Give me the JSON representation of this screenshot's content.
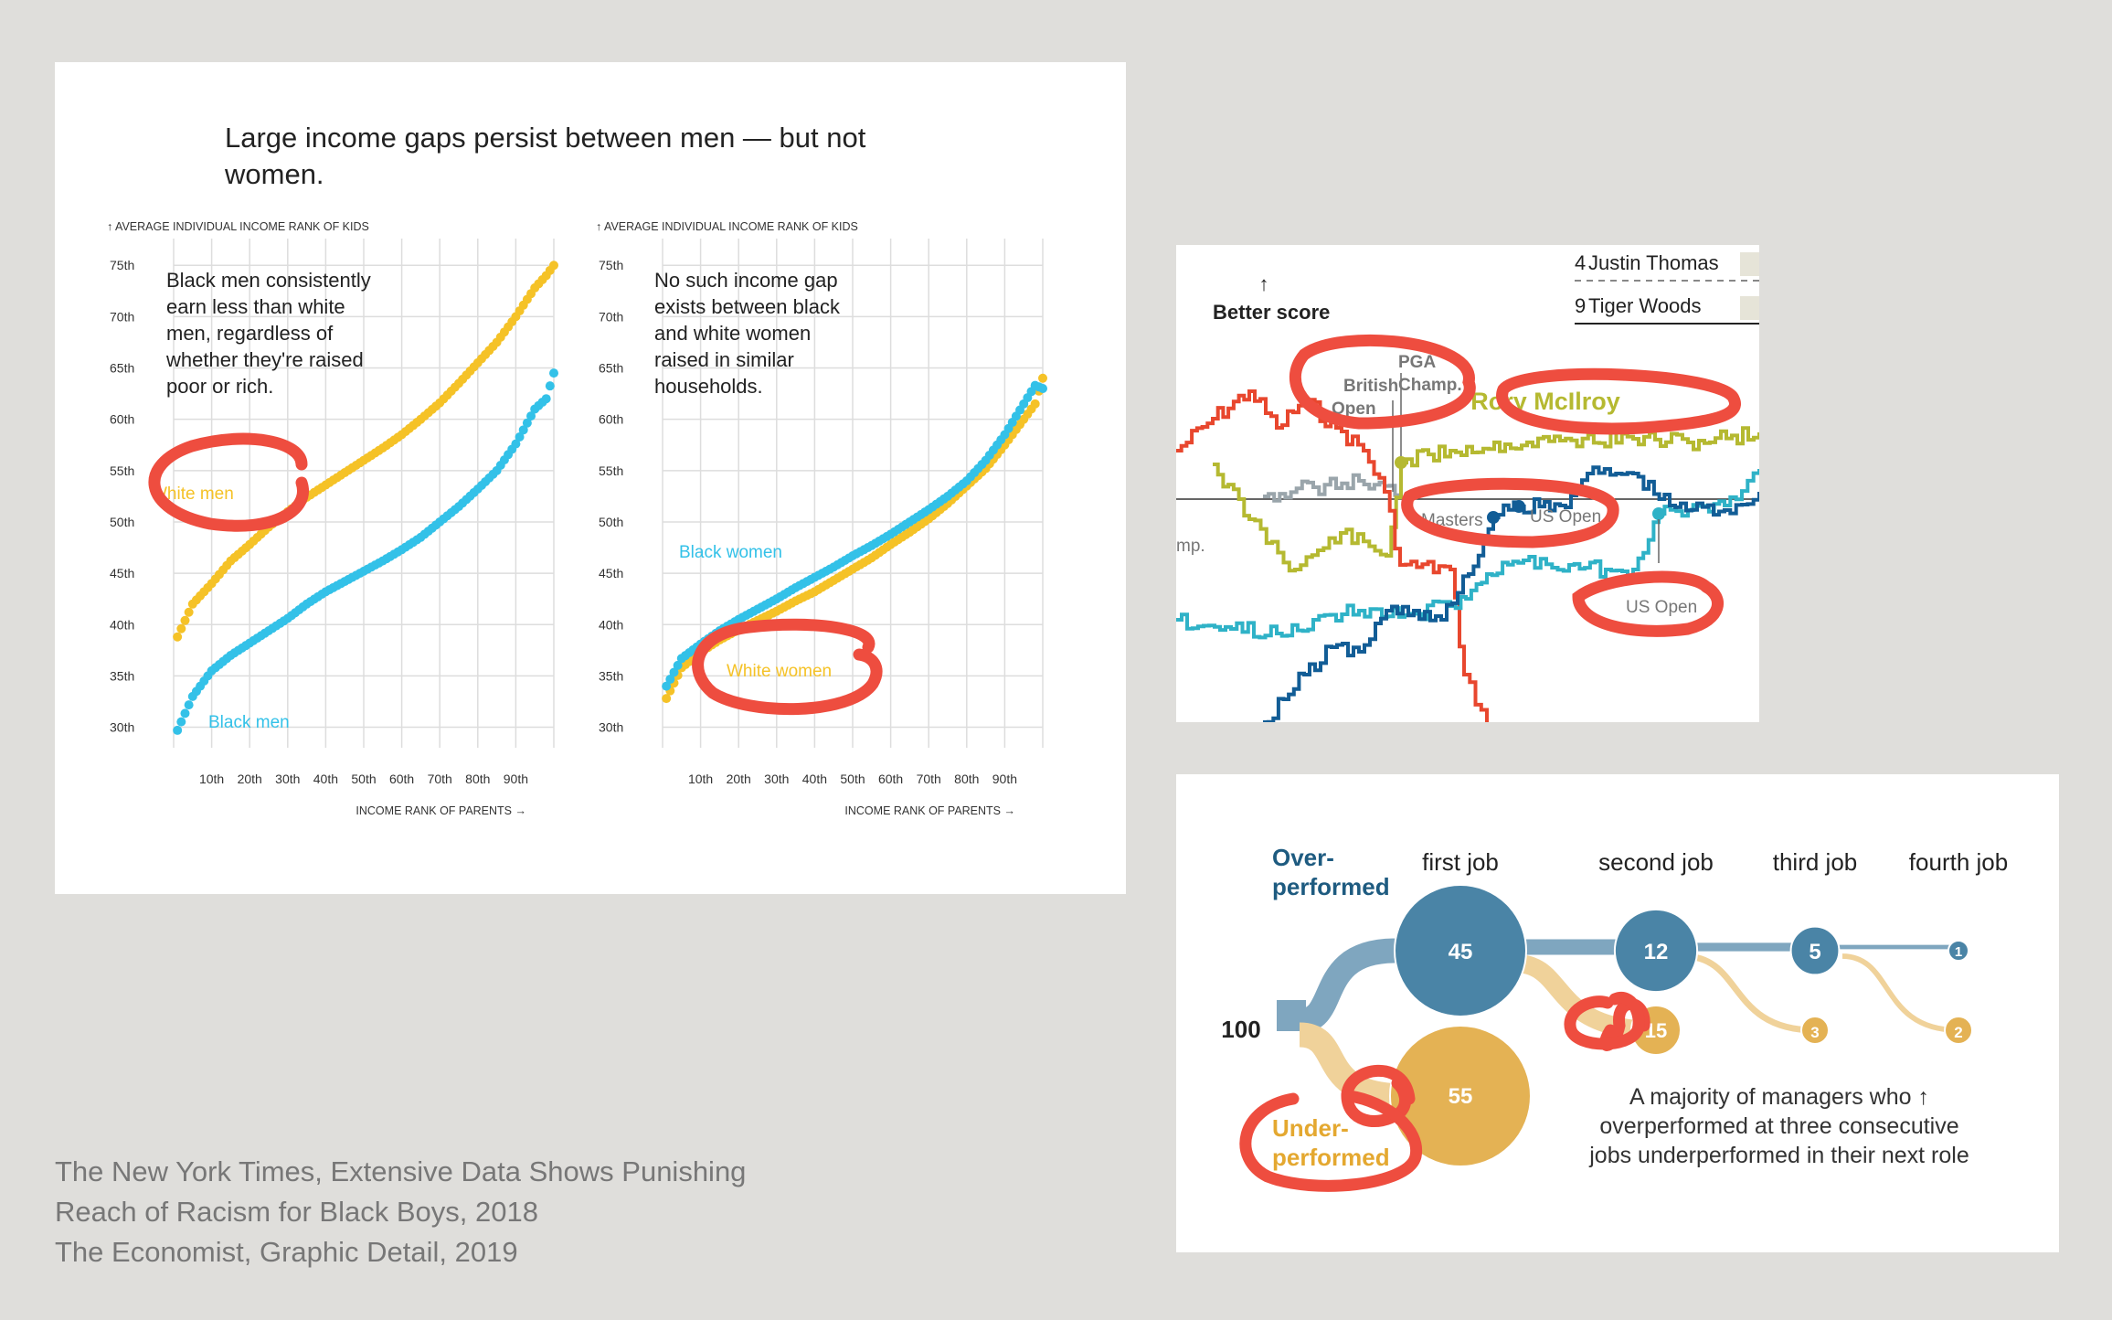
{
  "nyt": {
    "title_line1": "Large income gaps persist between men — but not",
    "title_line2": "women.",
    "colors": {
      "white": "#f5c227",
      "black": "#33c1e8",
      "circle": "#ee4d3f",
      "grid": "#dddddd"
    },
    "y_axis_label": "↑ AVERAGE INDIVIDUAL INCOME RANK OF KIDS",
    "x_axis_label": "INCOME RANK OF PARENTS →",
    "y_ticks": [
      "30th",
      "35th",
      "40th",
      "45th",
      "50th",
      "55th",
      "60th",
      "65th",
      "70th",
      "75th"
    ],
    "x_ticks": [
      "10th",
      "20th",
      "30th",
      "40th",
      "50th",
      "60th",
      "70th",
      "80th",
      "90th"
    ]
  },
  "chart_data": [
    {
      "type": "scatter",
      "title": "",
      "ylabel": "AVERAGE INDIVIDUAL INCOME RANK OF KIDS",
      "xlabel": "INCOME RANK OF PARENTS",
      "xlim": [
        0,
        100
      ],
      "ylim": [
        28,
        76
      ],
      "annotation_lines": [
        "Black men consistently",
        "earn less than white",
        "men, regardless of",
        "whether they're raised",
        "poor or rich."
      ],
      "series": [
        {
          "name": "White men",
          "x": [
            1,
            5,
            10,
            15,
            20,
            25,
            30,
            35,
            40,
            45,
            50,
            55,
            60,
            65,
            70,
            75,
            80,
            85,
            90,
            95,
            98,
            100
          ],
          "values": [
            38.8,
            42,
            44,
            46.2,
            47.8,
            49.5,
            51,
            52.4,
            53.6,
            54.8,
            56,
            57.2,
            58.5,
            60,
            61.6,
            63.5,
            65.5,
            67.5,
            70,
            72.8,
            74,
            75
          ]
        },
        {
          "name": "Black men",
          "x": [
            1,
            5,
            10,
            15,
            20,
            25,
            30,
            35,
            40,
            45,
            50,
            55,
            60,
            65,
            70,
            75,
            80,
            85,
            90,
            95,
            98,
            100
          ],
          "values": [
            29.7,
            33,
            35.5,
            37,
            38.2,
            39.4,
            40.6,
            42,
            43.2,
            44.2,
            45.2,
            46.2,
            47.3,
            48.5,
            50,
            51.5,
            53.2,
            55,
            57.6,
            61,
            62,
            64.5
          ]
        }
      ]
    },
    {
      "type": "scatter",
      "title": "",
      "ylabel": "AVERAGE INDIVIDUAL INCOME RANK OF KIDS",
      "xlabel": "INCOME RANK OF PARENTS",
      "xlim": [
        0,
        100
      ],
      "ylim": [
        28,
        76
      ],
      "annotation_lines": [
        "No such income gap",
        "exists between black",
        "and white women",
        "raised in similar",
        "households."
      ],
      "series": [
        {
          "name": "White women",
          "x": [
            1,
            5,
            10,
            15,
            20,
            25,
            30,
            35,
            40,
            45,
            50,
            55,
            60,
            65,
            70,
            75,
            80,
            85,
            90,
            95,
            98,
            100
          ],
          "values": [
            32.8,
            35.8,
            37.3,
            38.5,
            39.5,
            40.4,
            41.3,
            42.3,
            43.2,
            44.3,
            45.4,
            46.5,
            47.8,
            49,
            50.3,
            51.8,
            53.5,
            55.2,
            57.5,
            60,
            61.5,
            64
          ]
        },
        {
          "name": "Black women",
          "x": [
            1,
            5,
            10,
            15,
            20,
            25,
            30,
            35,
            40,
            45,
            50,
            55,
            60,
            65,
            70,
            75,
            80,
            85,
            90,
            95,
            98,
            100
          ],
          "values": [
            34,
            36.7,
            38.1,
            39.4,
            40.5,
            41.5,
            42.5,
            43.6,
            44.6,
            45.6,
            46.7,
            47.7,
            48.8,
            50,
            51.2,
            52.5,
            54,
            56,
            58.5,
            61.5,
            63.3,
            63
          ]
        }
      ]
    },
    {
      "type": "line",
      "title": "",
      "ylabel": "Better score",
      "legend": [
        "Justin Thomas",
        "Tiger Woods"
      ],
      "legend_ranks": [
        "4",
        "9"
      ],
      "series": [
        {
          "name": "Rory McIlroy",
          "color": "#b5b931"
        },
        {
          "name": "red",
          "color": "#e8472e"
        },
        {
          "name": "dark blue",
          "color": "#125d96"
        },
        {
          "name": "light blue",
          "color": "#2fb2c7"
        },
        {
          "name": "grey",
          "color": "#9aa5ab"
        }
      ],
      "annotations": [
        "British Open",
        "PGA Champ.",
        "Masters",
        "US Open",
        "US Open",
        "mp."
      ]
    },
    {
      "type": "flow",
      "title": "",
      "start_value": 100,
      "stages": [
        "first job",
        "second job",
        "third job",
        "fourth job"
      ],
      "over_label": "Over-\nperformed",
      "under_label": "Under-\nperformed",
      "over_values": [
        45,
        12,
        5,
        1
      ],
      "under_values": [
        55,
        15,
        3,
        2
      ],
      "note_lines": [
        "A majority of managers who  ↑",
        "overperformed at three consecutive",
        "jobs underperformed in their next role"
      ],
      "colors": {
        "over": "#4a84a6",
        "under": "#e4b254",
        "over_flow": "#7fa6bf",
        "under_flow": "#f0d29a"
      }
    }
  ],
  "golf": {
    "better_score": "Better score",
    "arrow": "↑",
    "legend": [
      {
        "rank": "4",
        "name": "Justin Thomas"
      },
      {
        "rank": "9",
        "name": "Tiger Woods"
      }
    ],
    "labels": {
      "british": [
        "British",
        "Open"
      ],
      "pga": [
        "PGA",
        "Champ."
      ],
      "rory": "Rory McIlroy",
      "masters": "Masters",
      "usopen1": "US Open",
      "usopen2": "US Open",
      "mp": "mp."
    }
  },
  "mgr": {
    "over_lines": [
      "Over-",
      "performed"
    ],
    "under_lines": [
      "Under-",
      "performed"
    ]
  },
  "captions": [
    "The New York Times, Extensive Data Shows Punishing",
    "Reach of Racism for Black Boys, 2018",
    "The Economist, Graphic Detail, 2019"
  ]
}
